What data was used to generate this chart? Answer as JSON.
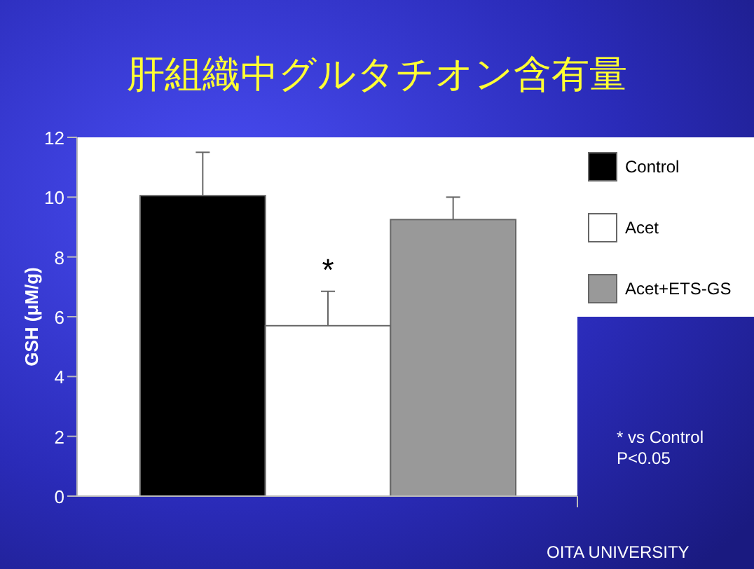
{
  "chart_data": {
    "type": "bar",
    "title": "肝組織中グルタチオン含有量",
    "ylabel": "GSH (μM/g)",
    "categories": [
      null,
      null,
      null
    ],
    "series": [
      {
        "name": "Control",
        "color": "#000000",
        "values": [
          10.05,
          null,
          null
        ],
        "errors": [
          [
            10.05,
            11.5
          ],
          null,
          null
        ]
      },
      {
        "name": "Acet",
        "color": "#ffffff",
        "values": [
          null,
          5.7,
          null
        ],
        "errors": [
          null,
          [
            5.7,
            6.85
          ],
          null
        ]
      },
      {
        "name": "Acet+ETS-GS",
        "color": "#999999",
        "values": [
          null,
          null,
          9.25
        ],
        "errors": [
          null,
          null,
          [
            9.25,
            10.0
          ]
        ]
      }
    ],
    "ylim": [
      0,
      12
    ],
    "yticks": [
      0,
      2,
      4,
      6,
      8,
      10,
      12
    ],
    "legend": "right",
    "annotations": [
      "*",
      "* vs Control\nP<0.05",
      "OITA UNIVERSITY"
    ]
  }
}
